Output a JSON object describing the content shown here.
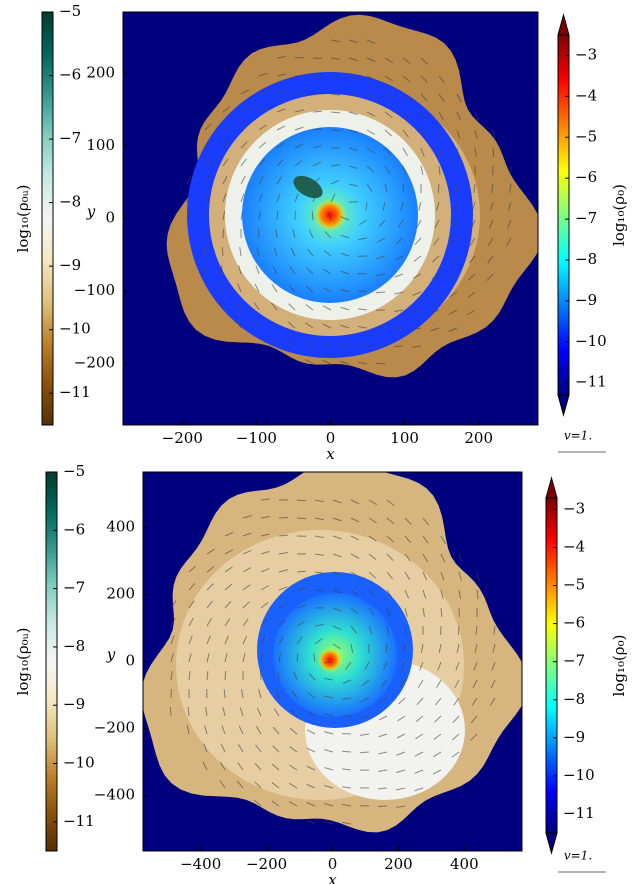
{
  "chart_data": [
    {
      "type": "contour",
      "x_label": "x",
      "y_label": "y",
      "xlim": [
        -280,
        280
      ],
      "ylim": [
        -285,
        285
      ],
      "xticks": [
        {
          "value": -200,
          "label": "−200"
        },
        {
          "value": -100,
          "label": "−100"
        },
        0,
        100,
        200
      ],
      "yticks": [
        {
          "value": -200,
          "label": "−200"
        },
        {
          "value": -100,
          "label": "−100"
        },
        0,
        100,
        200
      ],
      "background": "#00007f",
      "vector_key": "v=1.",
      "colorbars": [
        {
          "label": "log₁₀(ρ₀ᵤ)",
          "clim": [
            -11.5,
            -5
          ],
          "extend": false,
          "colors": [
            "#543005",
            "#8c510a",
            "#bf812d",
            "#dfc27d",
            "#f6e8c3",
            "#f5f5f5",
            "#c7eae5",
            "#80cdc1",
            "#35978f",
            "#01665e",
            "#003c30"
          ],
          "ticks": [
            {
              "value": -5,
              "label": "−5"
            },
            {
              "value": -6,
              "label": "−6"
            },
            {
              "value": -7,
              "label": "−7"
            },
            {
              "value": -8,
              "label": "−8"
            },
            {
              "value": -9,
              "label": "−9"
            },
            {
              "value": -10,
              "label": "−10"
            },
            {
              "value": -11,
              "label": "−11"
            }
          ]
        },
        {
          "label": "log₁₀(ρ₀)",
          "clim": [
            -11.3,
            -2.5
          ],
          "extend": true,
          "colors": [
            "#00007f",
            "#0000ff",
            "#007fff",
            "#00ffff",
            "#7fff7f",
            "#ffff00",
            "#ff7f00",
            "#ff0000",
            "#7f0000"
          ],
          "ticks": [
            {
              "value": -3,
              "label": "−3"
            },
            {
              "value": -4,
              "label": "−4"
            },
            {
              "value": -5,
              "label": "−5"
            },
            {
              "value": -6,
              "label": "−6"
            },
            {
              "value": -7,
              "label": "−7"
            },
            {
              "value": -8,
              "label": "−8"
            },
            {
              "value": -9,
              "label": "−9"
            },
            {
              "value": -10,
              "label": "−10"
            },
            {
              "value": -11,
              "label": "−11"
            }
          ]
        }
      ]
    },
    {
      "type": "contour",
      "x_label": "x",
      "y_label": "y",
      "xlim": [
        -575,
        575
      ],
      "ylim": [
        -565,
        565
      ],
      "xticks": [
        {
          "value": -400,
          "label": "−400"
        },
        {
          "value": -200,
          "label": "−200"
        },
        0,
        200,
        400
      ],
      "yticks": [
        {
          "value": -400,
          "label": "−400"
        },
        {
          "value": -200,
          "label": "−200"
        },
        0,
        200,
        400
      ],
      "background": "#00007f",
      "vector_key": "v=1.",
      "colorbars": [
        {
          "label": "log₁₀(ρ₀ᵤ)",
          "clim": [
            -11.5,
            -5
          ],
          "extend": false,
          "colors": [
            "#543005",
            "#8c510a",
            "#bf812d",
            "#dfc27d",
            "#f6e8c3",
            "#f5f5f5",
            "#c7eae5",
            "#80cdc1",
            "#35978f",
            "#01665e",
            "#003c30"
          ],
          "ticks": [
            {
              "value": -5,
              "label": "−5"
            },
            {
              "value": -6,
              "label": "−6"
            },
            {
              "value": -7,
              "label": "−7"
            },
            {
              "value": -8,
              "label": "−8"
            },
            {
              "value": -9,
              "label": "−9"
            },
            {
              "value": -10,
              "label": "−10"
            },
            {
              "value": -11,
              "label": "−11"
            }
          ]
        },
        {
          "label": "log₁₀(ρ₀)",
          "clim": [
            -11.5,
            -2.7
          ],
          "extend": true,
          "colors": [
            "#00007f",
            "#0000ff",
            "#007fff",
            "#00ffff",
            "#7fff7f",
            "#ffff00",
            "#ff7f00",
            "#ff0000",
            "#7f0000"
          ],
          "ticks": [
            {
              "value": -3,
              "label": "−3"
            },
            {
              "value": -4,
              "label": "−4"
            },
            {
              "value": -5,
              "label": "−5"
            },
            {
              "value": -6,
              "label": "−6"
            },
            {
              "value": -7,
              "label": "−7"
            },
            {
              "value": -8,
              "label": "−8"
            },
            {
              "value": -9,
              "label": "−9"
            },
            {
              "value": -10,
              "label": "−10"
            },
            {
              "value": -11,
              "label": "−11"
            }
          ]
        }
      ]
    }
  ]
}
